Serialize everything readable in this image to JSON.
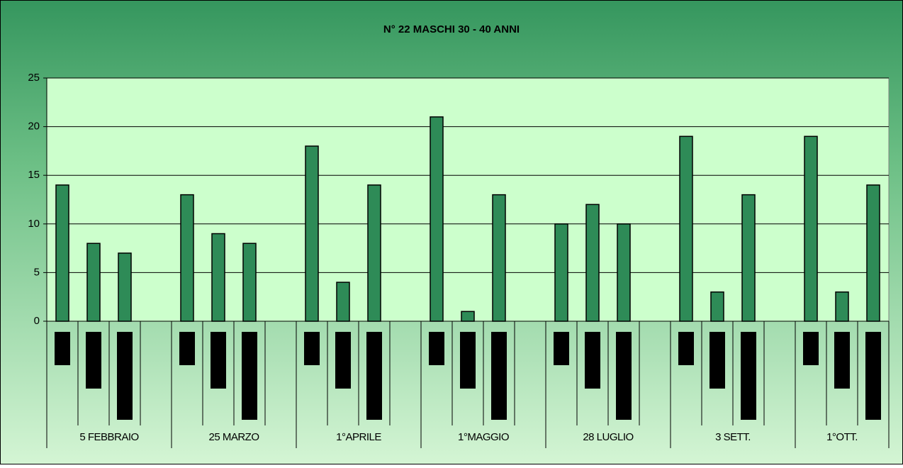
{
  "chart_data": {
    "type": "bar",
    "title": "N° 22 MASCHI 30 - 40 ANNI",
    "categories": [
      "5 FEBBRAIO",
      "25 MARZO",
      "1°APRILE",
      "1°MAGGIO",
      "28 LUGLIO",
      "3 SETT.",
      "1°OTT."
    ],
    "series": [
      {
        "color": "#2e8b57",
        "values": [
          14,
          13,
          18,
          21,
          10,
          19,
          19
        ]
      },
      {
        "color": "#2e8b57",
        "values": [
          8,
          9,
          4,
          1,
          12,
          3,
          3
        ]
      },
      {
        "color": "#2e8b57",
        "values": [
          7,
          8,
          14,
          13,
          10,
          13,
          14
        ]
      }
    ],
    "ylim": [
      0,
      25
    ],
    "yticks": [
      0,
      5,
      10,
      15,
      20,
      25
    ],
    "grid": true
  }
}
